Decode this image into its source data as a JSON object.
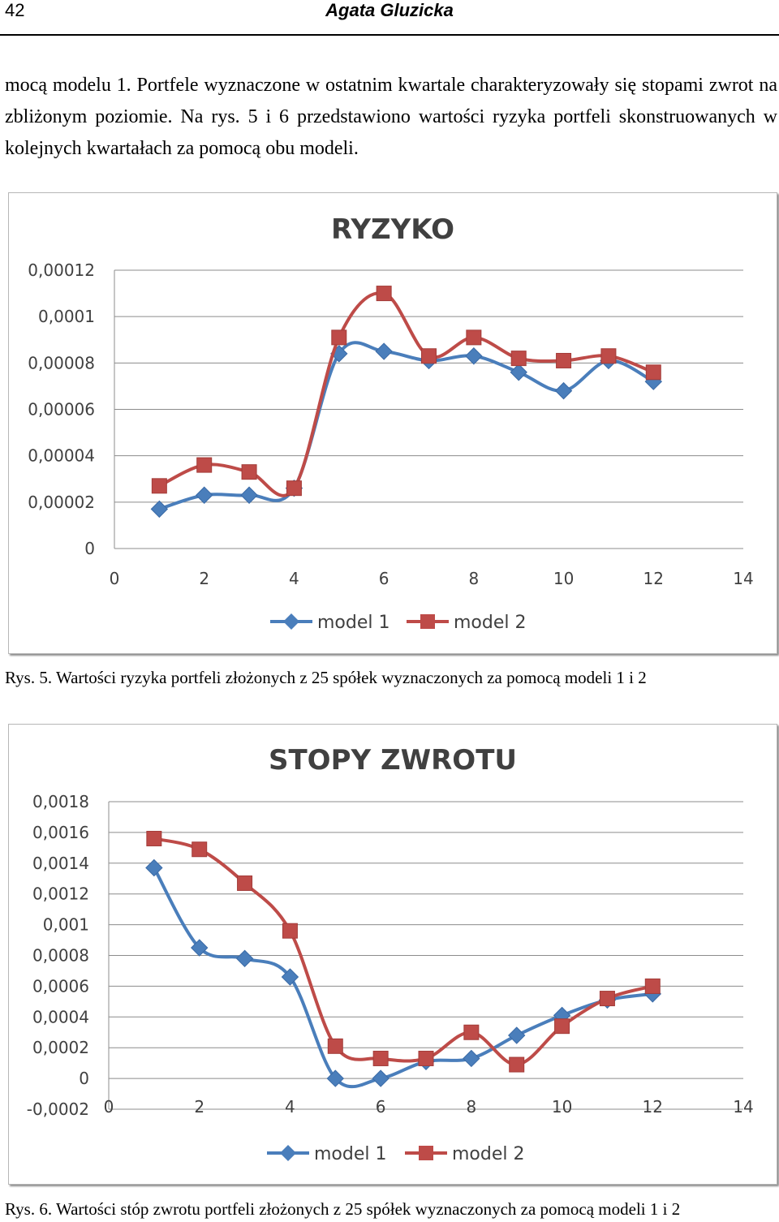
{
  "header": {
    "page_number": "42",
    "author": "Agata Gluzicka"
  },
  "body": {
    "paragraph": "mocą modelu 1. Portfele wyznaczone w ostatnim kwartale charakteryzowały się stopami zwrot na zbliżonym poziomie. Na rys. 5 i 6 przedstawiono wartości ryzyka portfeli skonstruowanych w kolejnych kwartałach za pomocą obu modeli."
  },
  "figures": [
    {
      "caption": "Rys. 5. Wartości ryzyka portfeli złożonych z 25 spółek wyznaczonych za pomocą modeli 1 i 2"
    },
    {
      "caption": "Rys. 6. Wartości stóp zwrotu portfeli złożonych z 25 spółek wyznaczonych za pomocą modeli 1 i 2"
    }
  ],
  "chart_data": [
    {
      "type": "line",
      "title": "RYZYKO",
      "xlim": [
        0,
        14
      ],
      "ylim": [
        0,
        0.00012
      ],
      "x_ticks": [
        "0",
        "2",
        "4",
        "6",
        "8",
        "10",
        "12",
        "14"
      ],
      "y_ticks": [
        "0",
        "0,00002",
        "0,00004",
        "0,00006",
        "0,00008",
        "0,0001",
        "0,00012"
      ],
      "x_tick_values": [
        0,
        2,
        4,
        6,
        8,
        10,
        12,
        14
      ],
      "y_tick_values": [
        0,
        2e-05,
        4e-05,
        6e-05,
        8e-05,
        0.0001,
        0.00012
      ],
      "grid": true,
      "legend_position": "bottom",
      "smooth": true,
      "x": [
        1,
        2,
        3,
        4,
        5,
        6,
        7,
        8,
        9,
        10,
        11,
        12
      ],
      "series": [
        {
          "name": "model 1",
          "color": "#4a7ebb",
          "marker": "diamond",
          "values": [
            1.7e-05,
            2.3e-05,
            2.3e-05,
            2.6e-05,
            8.4e-05,
            8.5e-05,
            8.1e-05,
            8.3e-05,
            7.6e-05,
            6.8e-05,
            8.1e-05,
            7.2e-05
          ]
        },
        {
          "name": "model 2",
          "color": "#be4b48",
          "marker": "square",
          "values": [
            2.7e-05,
            3.6e-05,
            3.3e-05,
            2.6e-05,
            9.1e-05,
            0.00011,
            8.3e-05,
            9.1e-05,
            8.2e-05,
            8.1e-05,
            8.3e-05,
            7.6e-05
          ]
        }
      ]
    },
    {
      "type": "line",
      "title": "STOPY ZWROTU",
      "xlim": [
        0,
        14
      ],
      "ylim": [
        -0.0002,
        0.0018
      ],
      "x_ticks": [
        "0",
        "2",
        "4",
        "6",
        "8",
        "10",
        "12",
        "14"
      ],
      "y_ticks": [
        "-0,0002",
        "0",
        "0,0002",
        "0,0004",
        "0,0006",
        "0,0008",
        "0,001",
        "0,0012",
        "0,0014",
        "0,0016",
        "0,0018"
      ],
      "x_tick_values": [
        0,
        2,
        4,
        6,
        8,
        10,
        12,
        14
      ],
      "y_tick_values": [
        -0.0002,
        0,
        0.0002,
        0.0004,
        0.0006,
        0.0008,
        0.001,
        0.0012,
        0.0014,
        0.0016,
        0.0018
      ],
      "grid": true,
      "legend_position": "bottom",
      "smooth": true,
      "x": [
        1,
        2,
        3,
        4,
        5,
        6,
        7,
        8,
        9,
        10,
        11,
        12
      ],
      "series": [
        {
          "name": "model 1",
          "color": "#4a7ebb",
          "marker": "diamond",
          "values": [
            0.00137,
            0.00085,
            0.00078,
            0.00066,
            0.0,
            0.0,
            0.00011,
            0.00013,
            0.00028,
            0.00041,
            0.00051,
            0.00055
          ]
        },
        {
          "name": "model 2",
          "color": "#be4b48",
          "marker": "square",
          "values": [
            0.00156,
            0.00149,
            0.00127,
            0.00096,
            0.00021,
            0.00013,
            0.00013,
            0.0003,
            9e-05,
            0.00034,
            0.00052,
            0.0006
          ]
        }
      ]
    }
  ]
}
